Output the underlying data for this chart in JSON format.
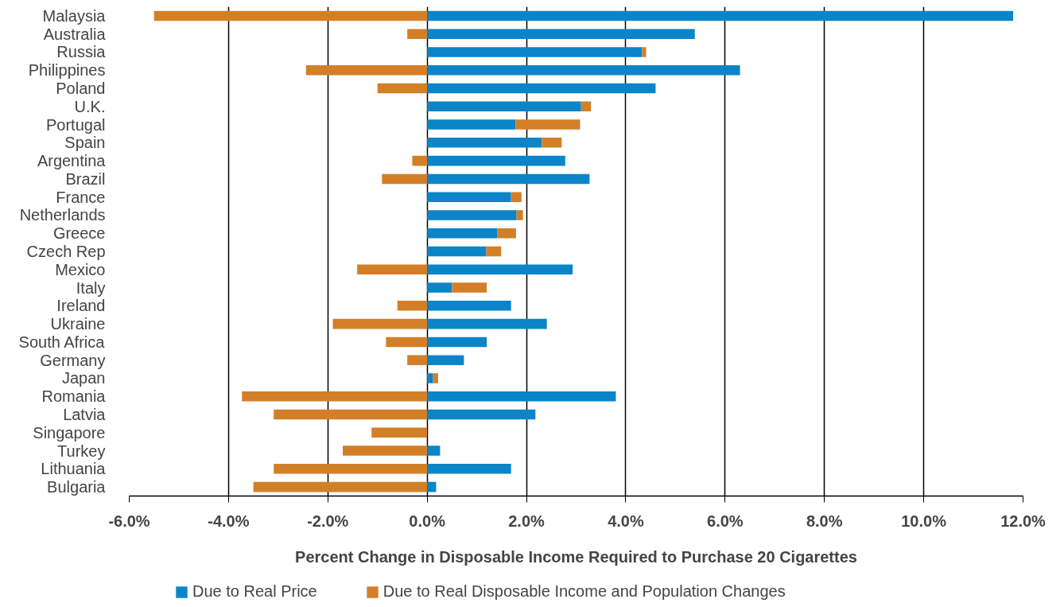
{
  "chart_data": {
    "type": "bar",
    "orientation": "horizontal",
    "stacked": true,
    "xlabel": "Percent Change in Disposable Income Required to Purchase 20 Cigarettes",
    "categories": [
      "Malaysia",
      "Australia",
      "Russia",
      "Philippines",
      "Poland",
      "U.K.",
      "Portugal",
      "Spain",
      "Argentina",
      "Brazil",
      "France",
      "Netherlands",
      "Greece",
      "Czech Rep",
      "Mexico",
      "Italy",
      "Ireland",
      "Ukraine",
      "South Africa",
      "Germany",
      "Japan",
      "Romania",
      "Latvia",
      "Singapore",
      "Turkey",
      "Lithuania",
      "Bulgaria"
    ],
    "series": [
      {
        "name": "Due to Real Price",
        "color": "#0b84c8",
        "values": [
          11.8,
          5.39,
          4.33,
          6.3,
          4.6,
          3.1,
          1.78,
          2.31,
          2.78,
          3.27,
          1.69,
          1.8,
          1.41,
          1.19,
          2.93,
          0.5,
          1.69,
          2.41,
          1.2,
          0.74,
          0.12,
          3.8,
          2.18,
          0,
          0.26,
          1.69,
          0.18
        ]
      },
      {
        "name": "Due to Real Disposable Income and Population Changes",
        "color": "#d37f27",
        "values": [
          -5.5,
          -0.4,
          0.08,
          -2.44,
          -1.0,
          0.2,
          1.3,
          0.4,
          -0.3,
          -0.91,
          0.21,
          0.13,
          0.38,
          0.3,
          -1.41,
          0.7,
          -0.6,
          -1.9,
          -0.83,
          -0.4,
          0.1,
          -3.73,
          -3.09,
          -1.12,
          -1.7,
          -3.09,
          -3.5
        ]
      }
    ],
    "xlim": [
      -6,
      12
    ],
    "xticks": [
      {
        "value": -6,
        "label": "-6.0%"
      },
      {
        "value": -4,
        "label": "-4.0%"
      },
      {
        "value": -2,
        "label": "-2.0%"
      },
      {
        "value": 0,
        "label": "0.0%"
      },
      {
        "value": 2,
        "label": "2.0%"
      },
      {
        "value": 4,
        "label": "4.0%"
      },
      {
        "value": 6,
        "label": "6.0%"
      },
      {
        "value": 8,
        "label": "8.0%"
      },
      {
        "value": 10,
        "label": "10.0%"
      },
      {
        "value": 12,
        "label": "12.0%"
      }
    ],
    "grid": "x",
    "legend": "bottom"
  }
}
